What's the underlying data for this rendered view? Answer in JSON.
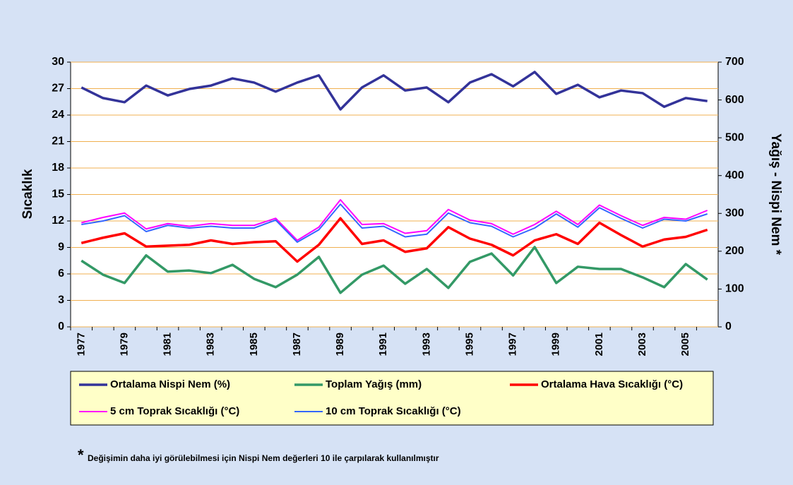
{
  "chart_data": {
    "type": "line",
    "y_label": "Sıcaklık",
    "y2_label": "Yağış - Nispi Nem *",
    "categories": [
      "1977",
      null,
      "1979",
      null,
      "1981",
      null,
      "1983",
      null,
      "1985",
      null,
      "1987",
      null,
      "1989",
      null,
      "1991",
      null,
      "1993",
      null,
      "1995",
      null,
      "1997",
      null,
      "1999",
      null,
      "2001",
      null,
      "2003",
      null,
      "2005",
      null
    ],
    "ylim": [
      0,
      30
    ],
    "yticks": [
      0,
      3,
      6,
      9,
      12,
      15,
      18,
      21,
      24,
      27,
      30
    ],
    "y2lim": [
      0,
      700
    ],
    "y2ticks": [
      0,
      100,
      200,
      300,
      400,
      500,
      600,
      700
    ],
    "grid": true,
    "series": [
      {
        "name": "Ortalama Nispi Nem (%)",
        "color": "#333399",
        "axis": "y2",
        "values": [
          633,
          605,
          594,
          638,
          612,
          629,
          638,
          657,
          646,
          622,
          646,
          665,
          575,
          633,
          665,
          625,
          633,
          594,
          646,
          668,
          636,
          674,
          616,
          640,
          607,
          625,
          618,
          582,
          605,
          597
        ]
      },
      {
        "name": "Toplam Yağış (mm)",
        "color": "#339966",
        "axis": "y2",
        "values": [
          175,
          138,
          116,
          189,
          146,
          149,
          142,
          164,
          127,
          105,
          138,
          185,
          90,
          138,
          162,
          114,
          153,
          103,
          172,
          194,
          136,
          211,
          116,
          159,
          153,
          153,
          131,
          105,
          166,
          125
        ]
      },
      {
        "name": "Ortalama Hava Sıcaklığı (°C)",
        "color": "#ff0000",
        "values": [
          9.5,
          10.1,
          10.6,
          9.1,
          9.2,
          9.3,
          9.8,
          9.4,
          9.6,
          9.7,
          7.4,
          9.3,
          12.3,
          9.4,
          9.8,
          8.5,
          8.9,
          11.3,
          10.0,
          9.3,
          8.1,
          9.8,
          10.5,
          9.4,
          11.8,
          10.4,
          9.1,
          9.9,
          10.2,
          11.0
        ]
      },
      {
        "name": "5 cm Toprak Sıcaklığı (°C)",
        "color": "#ff00ff",
        "values": [
          11.8,
          12.4,
          12.9,
          11.1,
          11.7,
          11.4,
          11.7,
          11.5,
          11.5,
          12.3,
          9.8,
          11.3,
          14.4,
          11.6,
          11.7,
          10.6,
          10.9,
          13.3,
          12.1,
          11.7,
          10.5,
          11.6,
          13.1,
          11.6,
          13.8,
          12.6,
          11.5,
          12.4,
          12.2,
          13.2
        ]
      },
      {
        "name": "10 cm Toprak Sıcaklığı (°C)",
        "color": "#3366ff",
        "values": [
          11.6,
          12.0,
          12.6,
          10.8,
          11.5,
          11.2,
          11.4,
          11.2,
          11.2,
          12.1,
          9.6,
          11.0,
          13.9,
          11.2,
          11.4,
          10.2,
          10.5,
          12.9,
          11.8,
          11.4,
          10.2,
          11.2,
          12.8,
          11.3,
          13.5,
          12.3,
          11.2,
          12.2,
          12.0,
          12.8
        ]
      }
    ],
    "note_mark": "*",
    "note": "Değişimin daha iyi görülebilmesi için Nispi Nem değerleri 10 ile çarpılarak kullanılmıştır"
  }
}
